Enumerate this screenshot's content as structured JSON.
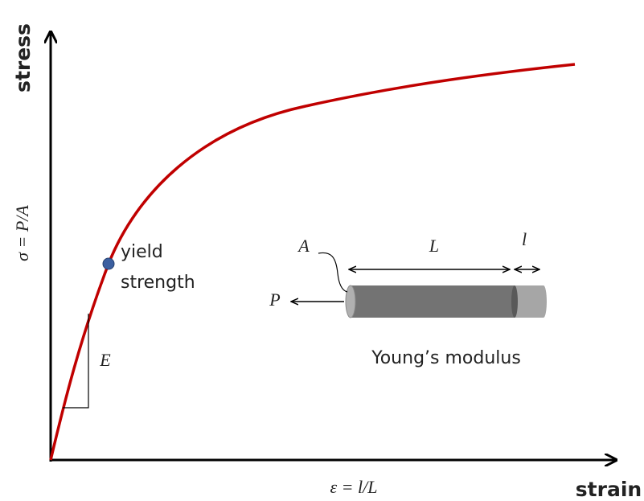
{
  "axes": {
    "y_label": "stress",
    "x_label": "strain",
    "y_formula": "σ = P/A",
    "x_formula": "ε = l/L"
  },
  "labels": {
    "yield": [
      "yield",
      "strength"
    ],
    "modulus_symbol": "E",
    "area": "A",
    "length": "L",
    "extension": "l",
    "force": "P",
    "caption": "Young’s modulus"
  }
}
